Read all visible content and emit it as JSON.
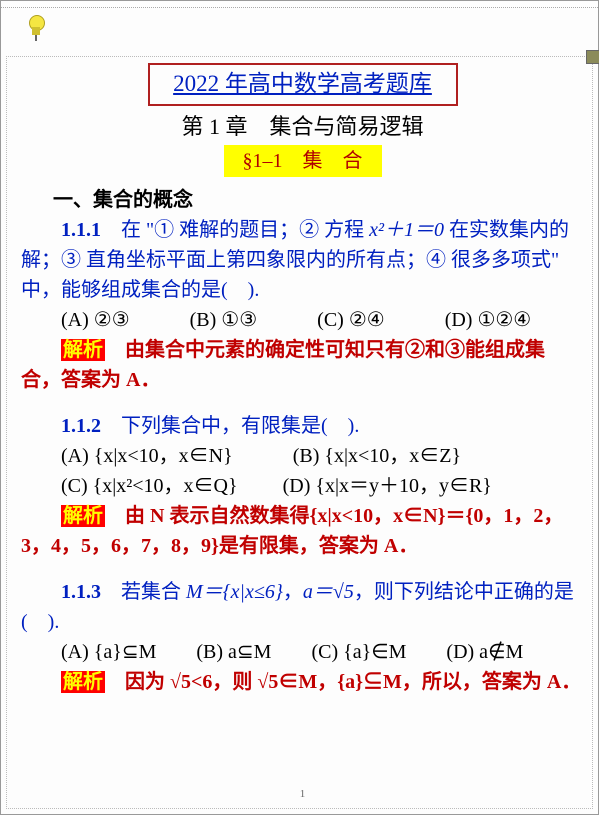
{
  "title": "2022 年高中数学高考题库",
  "chapter": "第 1 章　集合与简易逻辑",
  "section": "§1–1　集　合",
  "heading1": "一、集合的概念",
  "q111": {
    "num": "1.1.1",
    "body_a": "　在 \"① 难解的题目；② 方程 ",
    "formula": "x²＋1＝0",
    "body_b": " 在实数集内的解；③ 直角坐标平面上第四象限内的所有点；④ 很多多项式\" 中，能够组成集合的是(　).",
    "optA": "(A) ②③",
    "optB": "(B) ①③",
    "optC": "(C) ②④",
    "optD": "(D) ①②④",
    "jiexi": "解析",
    "ans": "　由集合中元素的确定性可知只有②和③能组成集合，答案为 A．"
  },
  "q112": {
    "num": "1.1.2",
    "body": "　下列集合中，有限集是(　).",
    "optA": "(A) {x|x<10，x∈N}",
    "optB": "(B) {x|x<10，x∈Z}",
    "optC": "(C) {x|x²<10，x∈Q}",
    "optD": "(D) {x|x＝y＋10，y∈R}",
    "jiexi": "解析",
    "ans": "　由 N 表示自然数集得{x|x<10，x∈N}＝{0，1，2，3，4，5，6，7，8，9}是有限集，答案为 A．"
  },
  "q113": {
    "num": "1.1.3",
    "body_a": "　若集合 ",
    "f1": "M＝{x|x≤6}",
    "body_b": "，",
    "f2": "a＝√5",
    "body_c": "，则下列结论中正确的是(　).",
    "optA": "(A) {a}⊆M",
    "optB": "(B) a⊆M",
    "optC": "(C) {a}∈M",
    "optD": "(D) a∉M",
    "jiexi": "解析",
    "ans": "　因为 √5<6，则 √5∈M，{a}⊆M，所以，答案为 A．"
  },
  "page_num": "1",
  "colors": {
    "title_border": "#b02020",
    "blue": "#0020c0",
    "red": "#c00000",
    "yellow_hl": "#ffff00",
    "red_hl": "#ff0000"
  }
}
